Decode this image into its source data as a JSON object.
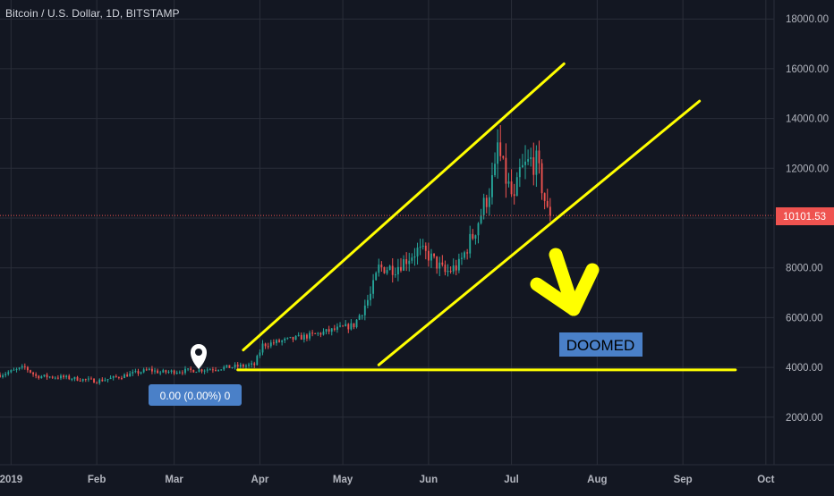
{
  "header": {
    "symbol_title": "Bitcoin / U.S. Dollar, 1D, BITSTAMP"
  },
  "colors": {
    "background": "#131722",
    "grid": "#2a2e39",
    "up": "#26a69a",
    "down": "#ef5350",
    "annotation_line": "#ffff00",
    "last_price_badge": "#ef5350",
    "doomed_label_bg": "#4a80c8",
    "measure_badge_bg": "#4a80c8",
    "axis_text": "#b2b5be"
  },
  "price_axis": {
    "labels": [
      "2000.00",
      "4000.00",
      "6000.00",
      "8000.00",
      "10000.00",
      "12000.00",
      "14000.00",
      "16000.00",
      "18000.00"
    ],
    "last_price_label": "10101.53"
  },
  "time_axis": {
    "labels": [
      "2019",
      "Feb",
      "Mar",
      "Apr",
      "May",
      "Jun",
      "Jul",
      "Aug",
      "Sep",
      "Oct"
    ]
  },
  "annotations": {
    "doomed_text": "DOOMED",
    "measure_text": "0.00 (0.00%) 0",
    "marker_icon": "map-pin-icon",
    "arrow_icon": "down-right-arrow"
  },
  "chart_data": {
    "type": "candlestick",
    "title": "Bitcoin / U.S. Dollar, 1D, BITSTAMP",
    "x_range": [
      "2018-12-28",
      "2019-10-03"
    ],
    "ylim": [
      0,
      19000
    ],
    "grid": true,
    "last_price": 10101.53,
    "close_path": [
      [
        "2018-12-28",
        3700
      ],
      [
        "2019-01-06",
        4000
      ],
      [
        "2019-01-10",
        3650
      ],
      [
        "2019-01-20",
        3600
      ],
      [
        "2019-02-01",
        3450
      ],
      [
        "2019-02-08",
        3600
      ],
      [
        "2019-02-20",
        3900
      ],
      [
        "2019-02-24",
        3800
      ],
      [
        "2019-03-10",
        3900
      ],
      [
        "2019-03-30",
        4100
      ],
      [
        "2019-04-02",
        4900
      ],
      [
        "2019-04-20",
        5300
      ],
      [
        "2019-05-05",
        5700
      ],
      [
        "2019-05-11",
        6900
      ],
      [
        "2019-05-14",
        8000
      ],
      [
        "2019-05-20",
        8000
      ],
      [
        "2019-05-28",
        8700
      ],
      [
        "2019-06-01",
        8500
      ],
      [
        "2019-06-07",
        7800
      ],
      [
        "2019-06-12",
        8100
      ],
      [
        "2019-06-17",
        9300
      ],
      [
        "2019-06-22",
        10800
      ],
      [
        "2019-06-25",
        11800
      ],
      [
        "2019-06-26",
        12900
      ],
      [
        "2019-06-28",
        11900
      ],
      [
        "2019-07-02",
        10600
      ],
      [
        "2019-07-04",
        11800
      ],
      [
        "2019-07-08",
        12300
      ],
      [
        "2019-07-10",
        12200
      ],
      [
        "2019-07-12",
        11300
      ],
      [
        "2019-07-14",
        10200
      ],
      [
        "2019-07-15",
        10100
      ]
    ],
    "annotations": [
      {
        "type": "trend_line",
        "from": [
          "2019-03-26",
          4700
        ],
        "to": [
          "2019-07-20",
          16200
        ]
      },
      {
        "type": "trend_line",
        "from": [
          "2019-05-14",
          4100
        ],
        "to": [
          "2019-09-07",
          14700
        ]
      },
      {
        "type": "horizontal_line",
        "from": [
          "2019-03-24",
          3900
        ],
        "to": [
          "2019-09-20",
          3900
        ]
      }
    ]
  }
}
